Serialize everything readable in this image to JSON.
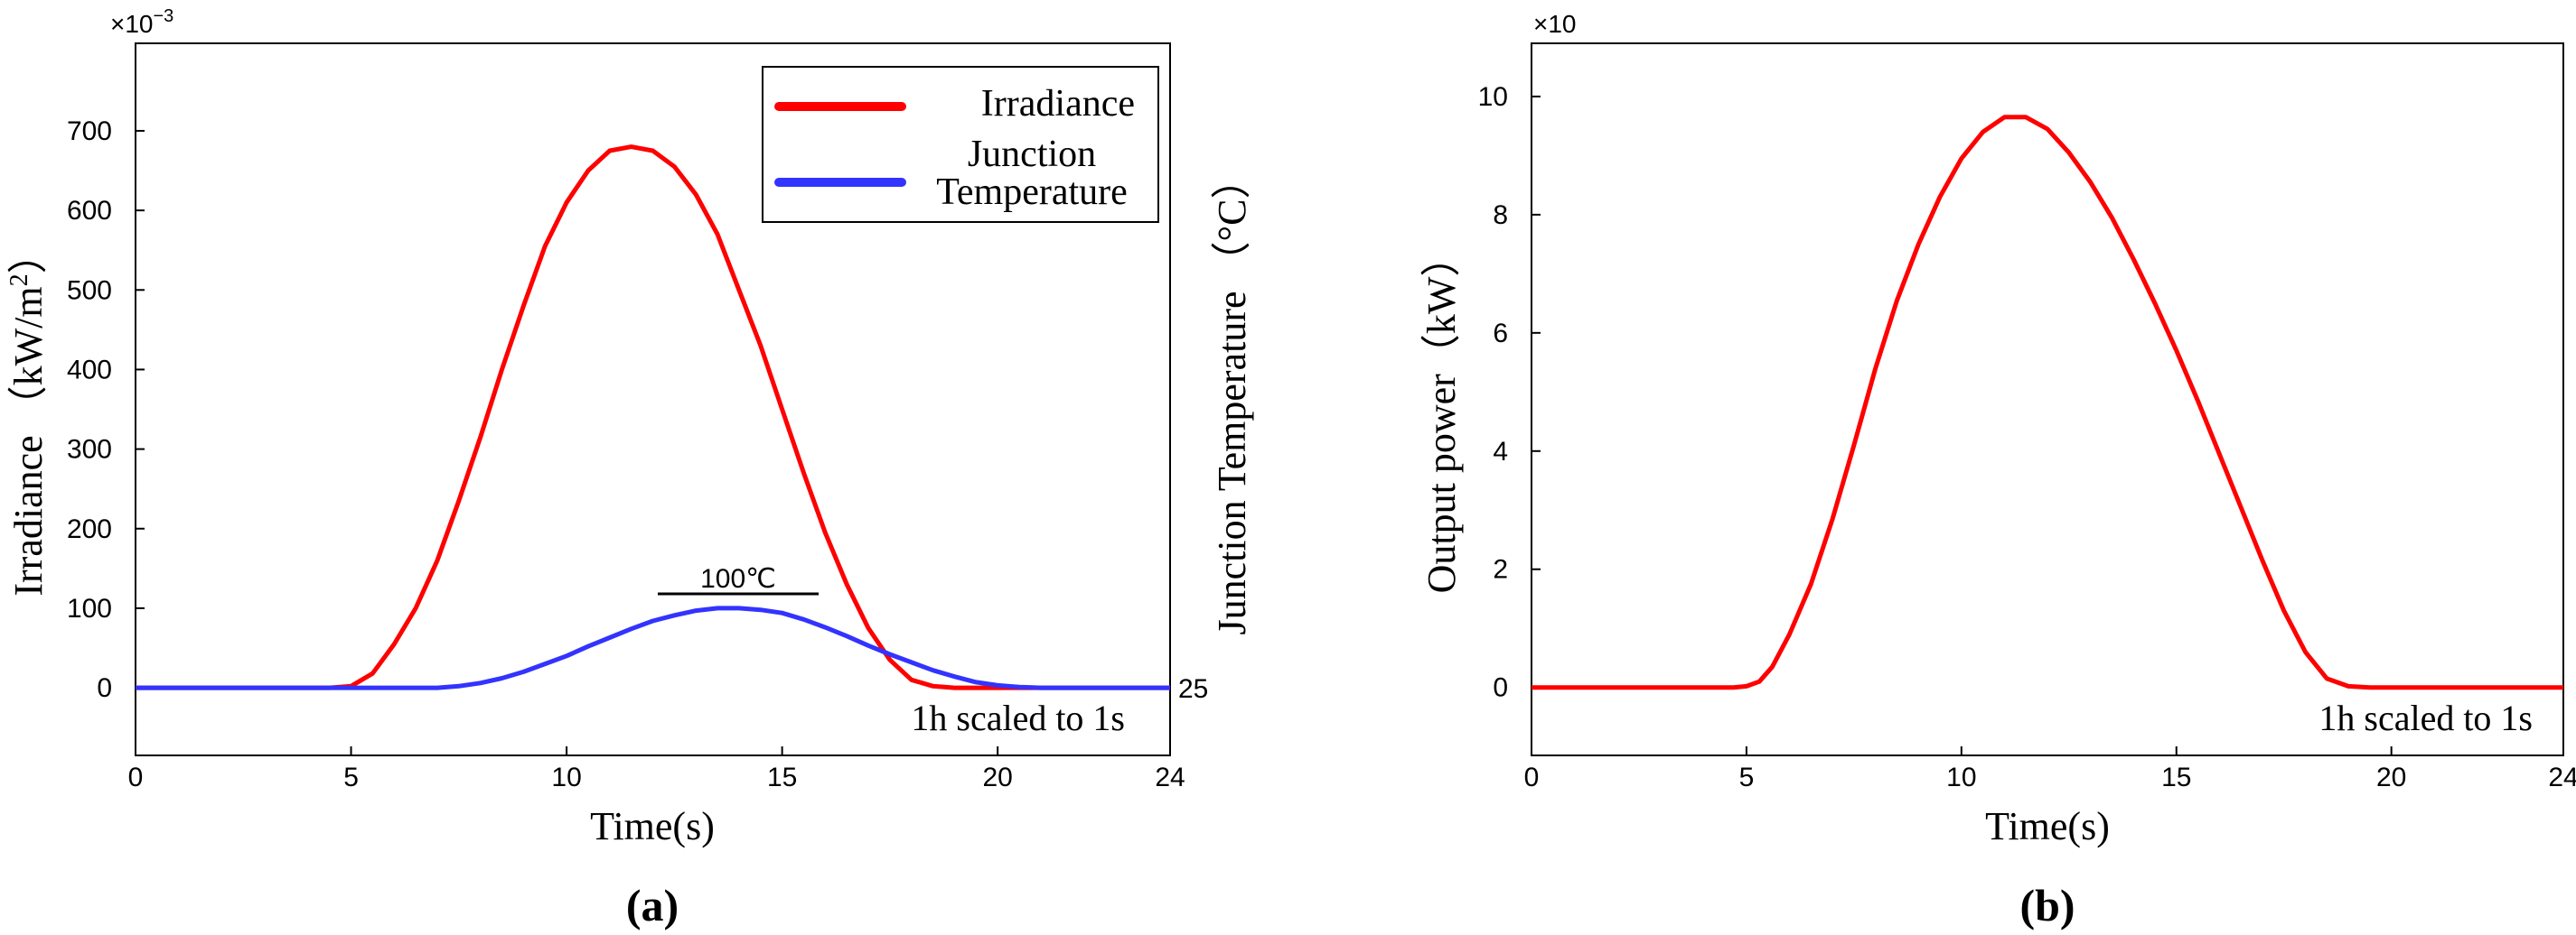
{
  "chart_data": [
    {
      "type": "line",
      "panel_label": "(a)",
      "xlabel": "Time(s)",
      "ylabel": "Irradiance  （kW/m",
      "ylabel_sup": "2",
      "ylabel_close": "）",
      "y2label": "Junction Temperature  （°C）",
      "y_multiplier": "×10",
      "y_multiplier_exp": "−3",
      "xlim": [
        0,
        24
      ],
      "ylim": [
        -85,
        810
      ],
      "xticks": [
        0,
        5,
        10,
        15,
        20,
        24
      ],
      "yticks": [
        0,
        100,
        200,
        300,
        400,
        500,
        600,
        700
      ],
      "y2tick_label": "25",
      "annotation": "100℃",
      "note": "1h scaled to 1s",
      "legend": {
        "position": "top-right",
        "entries": [
          {
            "label": "Irradiance",
            "color": "#ff0000"
          },
          {
            "label": "Junction",
            "label2": "Temperature",
            "color": "#3333ff"
          }
        ]
      },
      "series": [
        {
          "name": "Irradiance",
          "color": "#ff0000",
          "x": [
            0,
            4.5,
            5.0,
            5.5,
            6.0,
            6.5,
            7.0,
            7.5,
            8.0,
            8.5,
            9.0,
            9.5,
            10.0,
            10.5,
            11.0,
            11.5,
            12.0,
            12.5,
            13.0,
            13.5,
            14.0,
            14.5,
            15.0,
            15.5,
            16.0,
            16.5,
            17.0,
            17.5,
            18.0,
            18.5,
            19.0,
            19.5,
            20.0,
            24
          ],
          "values": [
            0,
            0,
            2,
            18,
            55,
            100,
            160,
            235,
            315,
            400,
            480,
            555,
            610,
            650,
            675,
            680,
            675,
            655,
            620,
            570,
            500,
            430,
            350,
            270,
            195,
            130,
            75,
            35,
            10,
            2,
            0,
            0,
            0,
            0
          ]
        },
        {
          "name": "Junction Temperature",
          "color": "#3333ff",
          "x": [
            0,
            6.5,
            7.0,
            7.5,
            8.0,
            8.5,
            9.0,
            9.5,
            10.0,
            10.5,
            11.0,
            11.5,
            12.0,
            12.5,
            13.0,
            13.5,
            14.0,
            14.5,
            15.0,
            15.5,
            16.0,
            16.5,
            17.0,
            17.5,
            18.0,
            18.5,
            19.0,
            19.5,
            20.0,
            20.5,
            21.0,
            24
          ],
          "values": [
            0,
            0,
            0,
            2,
            6,
            12,
            20,
            30,
            40,
            52,
            63,
            74,
            84,
            91,
            97,
            100,
            100,
            98,
            94,
            86,
            76,
            65,
            53,
            42,
            32,
            22,
            14,
            7,
            3,
            1,
            0,
            0
          ]
        }
      ]
    },
    {
      "type": "line",
      "panel_label": "(b)",
      "xlabel": "Time(s)",
      "ylabel": "Output power（kW）",
      "y_multiplier": "×10",
      "xlim": [
        0,
        24
      ],
      "ylim": [
        -1.15,
        10.9
      ],
      "xticks": [
        0,
        5,
        10,
        15,
        20,
        24
      ],
      "yticks": [
        0,
        2,
        4,
        6,
        8,
        10
      ],
      "note": "1h scaled to 1s",
      "series": [
        {
          "name": "Output power",
          "color": "#ff0000",
          "x": [
            0,
            4.7,
            5.0,
            5.3,
            5.6,
            6.0,
            6.5,
            7.0,
            7.5,
            8.0,
            8.5,
            9.0,
            9.5,
            10.0,
            10.5,
            11.0,
            11.5,
            12.0,
            12.5,
            13.0,
            13.5,
            14.0,
            14.5,
            15.0,
            15.5,
            16.0,
            16.5,
            17.0,
            17.5,
            18.0,
            18.5,
            19.0,
            19.5,
            24
          ],
          "values": [
            0,
            0,
            0.02,
            0.1,
            0.35,
            0.9,
            1.75,
            2.85,
            4.1,
            5.4,
            6.55,
            7.5,
            8.3,
            8.95,
            9.4,
            9.65,
            9.65,
            9.45,
            9.05,
            8.55,
            7.95,
            7.25,
            6.5,
            5.7,
            4.85,
            3.95,
            3.05,
            2.15,
            1.3,
            0.6,
            0.15,
            0.02,
            0,
            0
          ]
        }
      ]
    }
  ]
}
